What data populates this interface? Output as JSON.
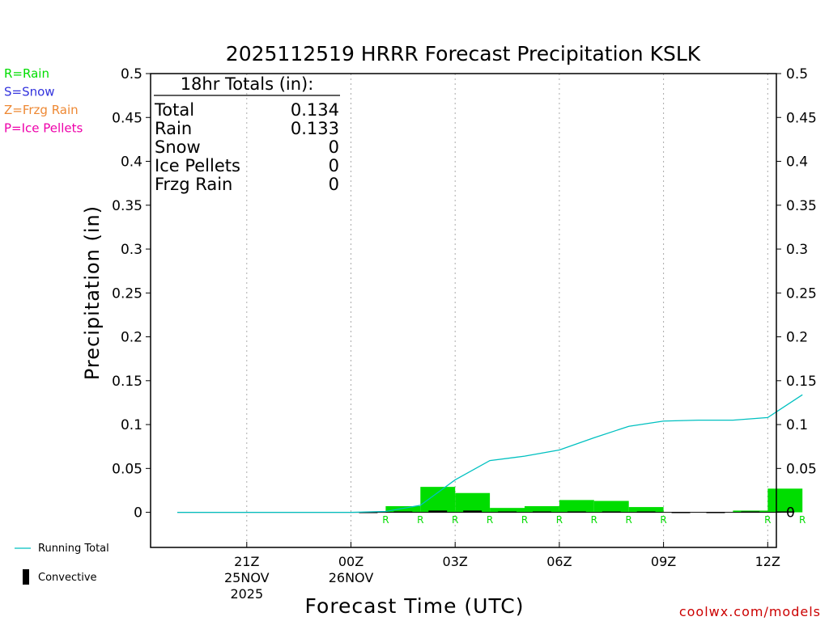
{
  "chart_data": {
    "type": "bar",
    "title": "2025112519 HRRR Forecast Precipitation KSLK",
    "xlabel": "Forecast Time (UTC)",
    "ylabel": "Precipitation (in)",
    "ylim": [
      -0.04,
      0.5
    ],
    "y_ticks": [
      0,
      0.05,
      0.1,
      0.15,
      0.2,
      0.25,
      0.3,
      0.35,
      0.4,
      0.45,
      0.5
    ],
    "y_tick_labels": [
      "0",
      "0.05",
      "0.1",
      "0.15",
      "0.2",
      "0.25",
      "0.3",
      "0.35",
      "0.4",
      "0.45",
      "0.5"
    ],
    "x_start_hour": 19,
    "x_end_hour": 37,
    "x_ticks": [
      {
        "hour": 21,
        "label": "21Z",
        "sub1": "25NOV",
        "sub2": "2025"
      },
      {
        "hour": 24,
        "label": "00Z",
        "sub1": "26NOV",
        "sub2": ""
      },
      {
        "hour": 27,
        "label": "03Z",
        "sub1": "",
        "sub2": ""
      },
      {
        "hour": 30,
        "label": "06Z",
        "sub1": "",
        "sub2": ""
      },
      {
        "hour": 33,
        "label": "09Z",
        "sub1": "",
        "sub2": ""
      },
      {
        "hour": 36,
        "label": "12Z",
        "sub1": "",
        "sub2": ""
      }
    ],
    "grid": "vertical dotted",
    "legend_placement": "left",
    "series": [
      {
        "name": "Running Total",
        "type": "line",
        "color": "#00c0c0",
        "x": [
          19,
          20,
          21,
          22,
          23,
          24,
          25,
          26,
          27,
          28,
          29,
          30,
          31,
          32,
          33,
          34,
          35,
          36,
          37
        ],
        "values": [
          0,
          0,
          0,
          0,
          0,
          0,
          0.001,
          0.008,
          0.037,
          0.059,
          0.064,
          0.071,
          0.085,
          0.098,
          0.104,
          0.105,
          0.105,
          0.108,
          0.134
        ]
      },
      {
        "name": "Rain",
        "type": "bar",
        "color": "#00dd00",
        "x": [
          26,
          27,
          28,
          29,
          30,
          31,
          32,
          33,
          36,
          37
        ],
        "values": [
          0.007,
          0.029,
          0.022,
          0.005,
          0.007,
          0.014,
          0.013,
          0.006,
          0.002,
          0.027
        ]
      },
      {
        "name": "Convective",
        "type": "bar",
        "color": "#000000",
        "x": [
          25,
          26,
          27,
          28,
          29,
          30,
          31,
          32,
          33,
          34,
          35,
          36,
          37
        ],
        "values": [
          0.0005,
          0.001,
          0.002,
          0.002,
          0.001,
          0.001,
          0.001,
          0.001,
          0.001,
          0.0005,
          0.0005,
          0.001,
          0.001
        ]
      }
    ],
    "ptype_markers": [
      {
        "hour": 25,
        "code": "R"
      },
      {
        "hour": 26,
        "code": "R"
      },
      {
        "hour": 27,
        "code": "R"
      },
      {
        "hour": 28,
        "code": "R"
      },
      {
        "hour": 29,
        "code": "R"
      },
      {
        "hour": 30,
        "code": "R"
      },
      {
        "hour": 31,
        "code": "R"
      },
      {
        "hour": 32,
        "code": "R"
      },
      {
        "hour": 33,
        "code": "R"
      },
      {
        "hour": 36,
        "code": "R"
      },
      {
        "hour": 37,
        "code": "R"
      }
    ],
    "totals": {
      "header": "18hr Totals (in):",
      "rows": [
        {
          "label": "Total",
          "value": "0.134"
        },
        {
          "label": "Rain",
          "value": "0.133"
        },
        {
          "label": "Snow",
          "value": "0"
        },
        {
          "label": "Ice Pellets",
          "value": "0"
        },
        {
          "label": "Frzg Rain",
          "value": "0"
        }
      ]
    },
    "ptype_legend": [
      {
        "text": "R=Rain",
        "color": "#00dd00"
      },
      {
        "text": "S=Snow",
        "color": "#3333dd"
      },
      {
        "text": "Z=Frzg Rain",
        "color": "#ee8833"
      },
      {
        "text": "P=Ice Pellets",
        "color": "#ee00aa"
      }
    ],
    "bottom_legend": {
      "running_total": "Running Total",
      "convective": "Convective"
    },
    "credit": "coolwx.com/models"
  }
}
